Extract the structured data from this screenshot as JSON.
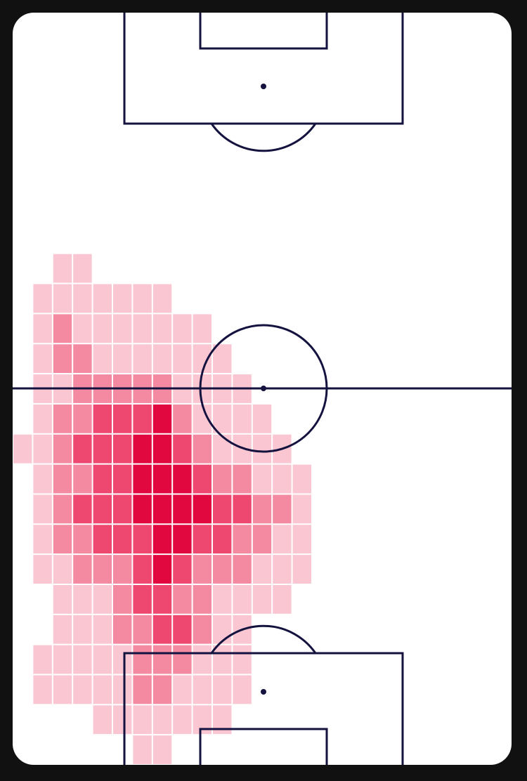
{
  "chart_data": {
    "type": "heatmap",
    "colors": [
      "#f9c6d2",
      "#f48aa2",
      "#ee4870",
      "#e0083f"
    ],
    "values": [
      [
        0,
        0,
        0,
        0,
        0,
        0,
        0,
        0,
        0,
        0,
        0,
        0,
        0,
        0,
        0,
        0,
        0,
        0,
        0,
        0,
        0,
        0,
        0,
        0,
        0
      ],
      [
        0,
        0,
        0,
        0,
        0,
        0,
        0,
        0,
        0,
        0,
        0,
        0,
        0,
        0,
        0,
        0,
        0,
        0,
        0,
        0,
        0,
        0,
        0,
        0,
        0
      ],
      [
        0,
        0,
        0,
        0,
        0,
        0,
        0,
        0,
        0,
        0,
        0,
        0,
        0,
        0,
        0,
        0,
        0,
        0,
        0,
        0,
        0,
        0,
        0,
        0,
        0
      ],
      [
        0,
        0,
        0,
        0,
        0,
        0,
        0,
        0,
        0,
        0,
        0,
        0,
        0,
        0,
        0,
        0,
        0,
        0,
        0,
        0,
        0,
        0,
        0,
        0,
        0
      ],
      [
        0,
        0,
        0,
        0,
        0,
        0,
        0,
        0,
        0,
        0,
        0,
        0,
        0,
        0,
        0,
        0,
        0,
        0,
        0,
        0,
        0,
        0,
        0,
        0,
        0
      ],
      [
        0,
        0,
        0,
        0,
        0,
        0,
        0,
        0,
        0,
        0,
        0,
        0,
        0,
        0,
        0,
        0,
        0,
        0,
        0,
        0,
        0,
        0,
        0,
        0,
        0
      ],
      [
        0,
        0,
        0,
        0,
        0,
        0,
        0,
        0,
        0,
        0,
        0,
        0,
        0,
        0,
        0,
        0,
        0,
        0,
        0,
        0,
        0,
        0,
        0,
        0,
        0
      ],
      [
        0,
        0,
        0,
        0,
        0,
        0,
        0,
        0,
        0,
        0,
        0,
        0,
        0,
        0,
        0,
        0,
        0,
        0,
        0,
        0,
        0,
        0,
        0,
        0,
        0
      ],
      [
        0,
        0,
        1,
        1,
        0,
        0,
        0,
        0,
        0,
        0,
        0,
        0,
        0,
        0,
        0,
        0,
        0,
        0,
        0,
        0,
        0,
        0,
        0,
        0,
        0
      ],
      [
        0,
        1,
        1,
        1,
        1,
        1,
        1,
        1,
        0,
        0,
        0,
        0,
        0,
        0,
        0,
        0,
        0,
        0,
        0,
        0,
        0,
        0,
        0,
        0,
        0
      ],
      [
        0,
        1,
        2,
        1,
        1,
        1,
        1,
        1,
        1,
        1,
        0,
        0,
        0,
        0,
        0,
        0,
        0,
        0,
        0,
        0,
        0,
        0,
        0,
        0,
        0
      ],
      [
        0,
        1,
        2,
        2,
        1,
        1,
        1,
        1,
        1,
        1,
        1,
        0,
        0,
        0,
        0,
        0,
        0,
        0,
        0,
        0,
        0,
        0,
        0,
        0,
        0
      ],
      [
        0,
        1,
        1,
        2,
        2,
        2,
        2,
        2,
        1,
        1,
        1,
        1,
        0,
        0,
        0,
        0,
        0,
        0,
        0,
        0,
        0,
        0,
        0,
        0,
        0
      ],
      [
        0,
        1,
        2,
        2,
        3,
        3,
        3,
        4,
        2,
        1,
        1,
        1,
        1,
        0,
        0,
        0,
        0,
        0,
        0,
        0,
        0,
        0,
        0,
        0,
        0
      ],
      [
        1,
        1,
        2,
        3,
        3,
        3,
        4,
        4,
        3,
        2,
        1,
        1,
        1,
        1,
        0,
        0,
        0,
        0,
        0,
        0,
        0,
        0,
        0,
        0,
        0
      ],
      [
        0,
        1,
        2,
        2,
        3,
        3,
        4,
        4,
        4,
        3,
        2,
        2,
        1,
        1,
        1,
        0,
        0,
        0,
        0,
        0,
        0,
        0,
        0,
        0,
        0
      ],
      [
        0,
        1,
        2,
        3,
        3,
        3,
        4,
        4,
        4,
        4,
        3,
        3,
        2,
        2,
        1,
        0,
        0,
        0,
        0,
        0,
        0,
        0,
        0,
        0,
        0
      ],
      [
        0,
        1,
        2,
        2,
        3,
        3,
        3,
        4,
        4,
        3,
        3,
        2,
        2,
        1,
        1,
        0,
        0,
        0,
        0,
        0,
        0,
        0,
        0,
        0,
        0
      ],
      [
        0,
        1,
        1,
        2,
        2,
        2,
        3,
        4,
        3,
        2,
        2,
        2,
        1,
        1,
        1,
        0,
        0,
        0,
        0,
        0,
        0,
        0,
        0,
        0,
        0
      ],
      [
        0,
        0,
        1,
        1,
        1,
        2,
        3,
        3,
        2,
        2,
        1,
        1,
        1,
        1,
        0,
        0,
        0,
        0,
        0,
        0,
        0,
        0,
        0,
        0,
        0
      ],
      [
        0,
        0,
        1,
        1,
        1,
        2,
        2,
        3,
        3,
        2,
        1,
        1,
        0,
        0,
        0,
        0,
        0,
        0,
        0,
        0,
        0,
        0,
        0,
        0,
        0
      ],
      [
        0,
        1,
        1,
        1,
        1,
        1,
        2,
        2,
        2,
        1,
        1,
        1,
        0,
        0,
        0,
        0,
        0,
        0,
        0,
        0,
        0,
        0,
        0,
        0,
        0
      ],
      [
        0,
        1,
        1,
        1,
        1,
        1,
        2,
        2,
        1,
        1,
        1,
        1,
        0,
        0,
        0,
        0,
        0,
        0,
        0,
        0,
        0,
        0,
        0,
        0,
        0
      ],
      [
        0,
        0,
        0,
        0,
        1,
        1,
        1,
        1,
        1,
        1,
        1,
        0,
        0,
        0,
        0,
        0,
        0,
        0,
        0,
        0,
        0,
        0,
        0,
        0,
        0
      ],
      [
        0,
        0,
        0,
        0,
        0,
        0,
        1,
        1,
        0,
        0,
        0,
        0,
        0,
        0,
        0,
        0,
        0,
        0,
        0,
        0,
        0,
        0,
        0,
        0,
        0
      ]
    ]
  }
}
